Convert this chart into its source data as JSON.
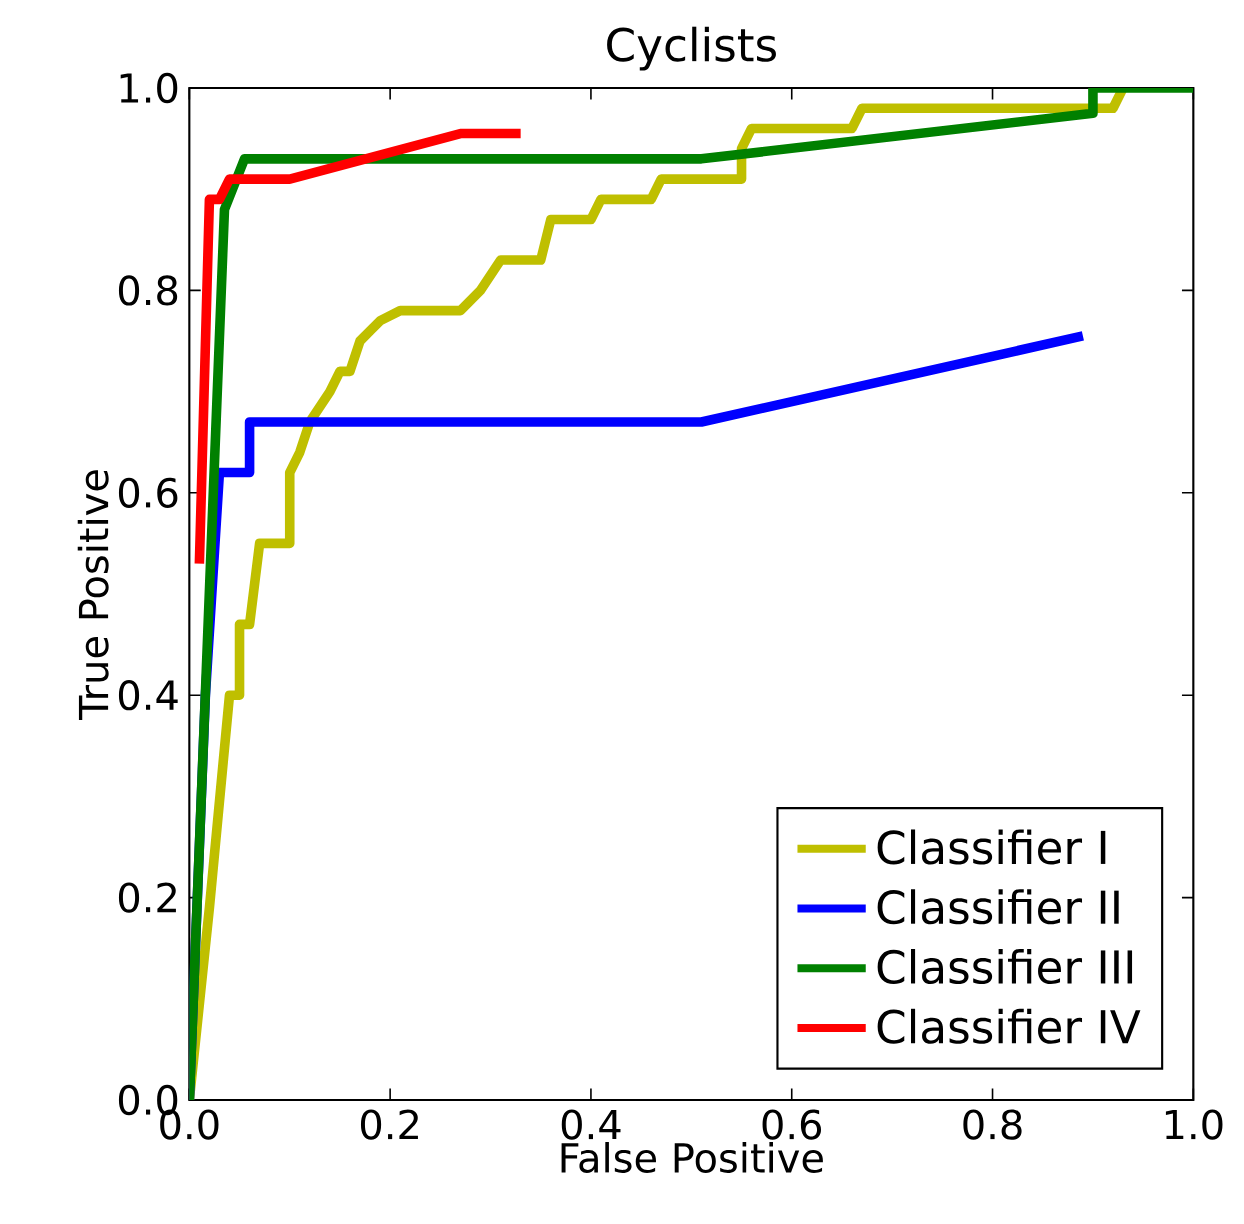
{
  "chart_data": {
    "type": "line",
    "title": "Cyclists",
    "xlabel": "False Positive",
    "ylabel": "True Positive",
    "xlim": [
      0,
      1
    ],
    "ylim": [
      0,
      1
    ],
    "xticks": [
      {
        "value": 0,
        "label": "0.0"
      },
      {
        "value": 0.2,
        "label": "0.2"
      },
      {
        "value": 0.4,
        "label": "0.4"
      },
      {
        "value": 0.6,
        "label": "0.6"
      },
      {
        "value": 0.8,
        "label": "0.8"
      },
      {
        "value": 1,
        "label": "1.0"
      }
    ],
    "yticks": [
      {
        "value": 0,
        "label": "0.0"
      },
      {
        "value": 0.2,
        "label": "0.2"
      },
      {
        "value": 0.4,
        "label": "0.4"
      },
      {
        "value": 0.6,
        "label": "0.6"
      },
      {
        "value": 0.8,
        "label": "0.8"
      },
      {
        "value": 1,
        "label": "1.0"
      }
    ],
    "grid": false,
    "legend": "bottom right",
    "marker": "none",
    "line_style": "solid",
    "series": [
      {
        "name": "Classifier I",
        "color": "#bfbf00",
        "x": [
          0,
          0.02,
          0.04,
          0.05,
          0.05,
          0.06,
          0.07,
          0.1,
          0.1,
          0.11,
          0.12,
          0.14,
          0.15,
          0.16,
          0.17,
          0.18,
          0.19,
          0.21,
          0.27,
          0.29,
          0.31,
          0.35,
          0.36,
          0.4,
          0.41,
          0.46,
          0.47,
          0.55,
          0.55,
          0.56,
          0.66,
          0.67,
          0.92,
          0.93
        ],
        "values": [
          0,
          0.19,
          0.4,
          0.4,
          0.47,
          0.47,
          0.55,
          0.55,
          0.62,
          0.64,
          0.67,
          0.7,
          0.72,
          0.72,
          0.75,
          0.76,
          0.77,
          0.78,
          0.78,
          0.8,
          0.83,
          0.83,
          0.87,
          0.87,
          0.89,
          0.89,
          0.91,
          0.91,
          0.94,
          0.96,
          0.96,
          0.98,
          0.98,
          1.0
        ]
      },
      {
        "name": "Classifier II",
        "color": "#0000ff",
        "x": [
          0,
          0.016,
          0.03,
          0.06,
          0.06,
          0.51,
          0.89
        ],
        "values": [
          0,
          0.4,
          0.62,
          0.62,
          0.67,
          0.67,
          0.755
        ]
      },
      {
        "name": "Classifier III",
        "color": "#008000",
        "x": [
          0,
          0.035,
          0.055,
          0.51,
          0.9,
          0.9,
          1.0
        ],
        "values": [
          0,
          0.88,
          0.93,
          0.93,
          0.975,
          1.0,
          1.0
        ]
      },
      {
        "name": "Classifier IV",
        "color": "#ff0000",
        "x": [
          0.01,
          0.02,
          0.03,
          0.04,
          0.054,
          0.1,
          0.27,
          0.33
        ],
        "values": [
          0.53,
          0.89,
          0.89,
          0.91,
          0.91,
          0.91,
          0.955,
          0.955
        ]
      }
    ]
  }
}
